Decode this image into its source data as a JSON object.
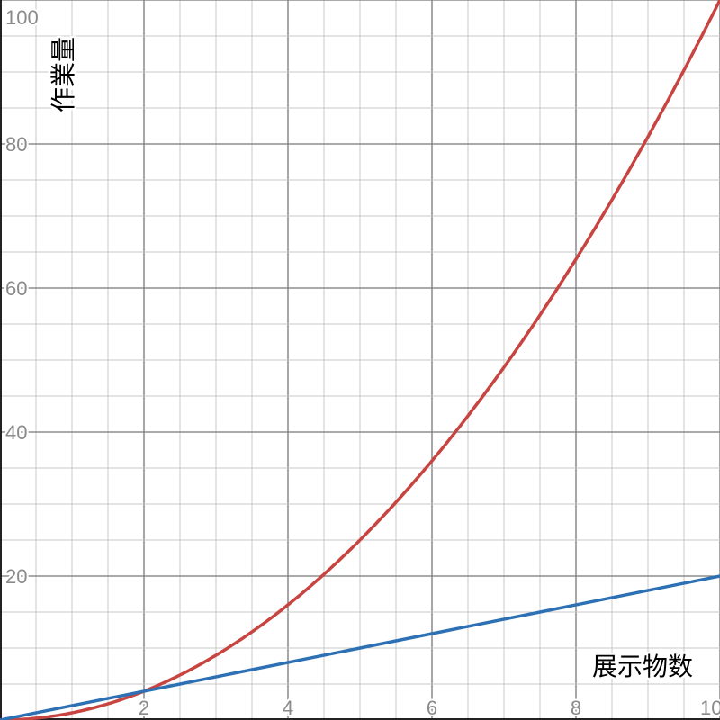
{
  "chart_data": {
    "type": "line",
    "xlabel": "展示物数",
    "ylabel": "作業量",
    "xlim": [
      0,
      10
    ],
    "ylim": [
      0,
      100
    ],
    "x_ticks": [
      "2",
      "4",
      "6",
      "8",
      "10"
    ],
    "y_ticks": [
      "20",
      "40",
      "60",
      "80",
      "100"
    ],
    "grid": true,
    "series": [
      {
        "color": "#c74440",
        "expression": "y = x^2",
        "x": [
          0,
          1,
          2,
          3,
          4,
          5,
          6,
          7,
          8,
          9,
          10
        ],
        "values": [
          0,
          1,
          4,
          9,
          16,
          25,
          36,
          49,
          64,
          81,
          100
        ]
      },
      {
        "color": "#2d70b3",
        "expression": "y = 2x",
        "x": [
          0,
          2,
          4,
          6,
          8,
          10
        ],
        "values": [
          0,
          4,
          8,
          12,
          16,
          20
        ]
      }
    ]
  }
}
